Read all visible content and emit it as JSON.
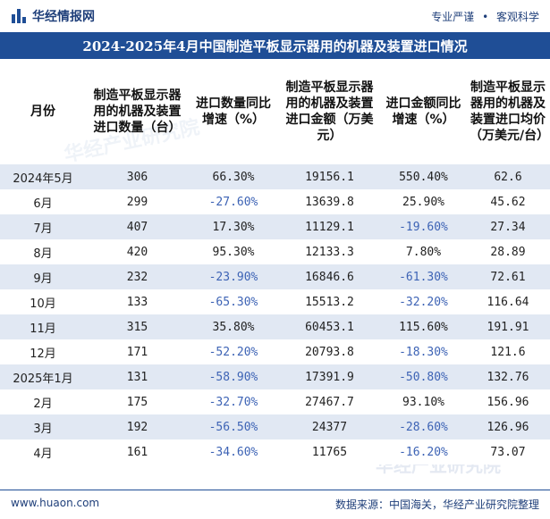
{
  "header": {
    "brand": "华经情报网",
    "tagline": [
      "专业严谨",
      "客观科学"
    ]
  },
  "title": "2024-2025年4月中国制造平板显示器用的机器及装置进口情况",
  "table": {
    "columns": [
      "月份",
      "制造平板显示器用的机器及装置进口数量（台）",
      "进口数量同比增速（%）",
      "制造平板显示器用的机器及装置进口金额（万美元）",
      "进口金额同比增速（%）",
      "制造平板显示器用的机器及装置进口均价（万美元/台）"
    ],
    "rows": [
      [
        "2024年5月",
        "306",
        "66.30%",
        "19156.1",
        "550.40%",
        "62.6"
      ],
      [
        "6月",
        "299",
        "-27.60%",
        "13639.8",
        "25.90%",
        "45.62"
      ],
      [
        "7月",
        "407",
        "17.30%",
        "11129.1",
        "-19.60%",
        "27.34"
      ],
      [
        "8月",
        "420",
        "95.30%",
        "12133.3",
        "7.80%",
        "28.89"
      ],
      [
        "9月",
        "232",
        "-23.90%",
        "16846.6",
        "-61.30%",
        "72.61"
      ],
      [
        "10月",
        "133",
        "-65.30%",
        "15513.2",
        "-32.20%",
        "116.64"
      ],
      [
        "11月",
        "315",
        "35.80%",
        "60453.1",
        "115.60%",
        "191.91"
      ],
      [
        "12月",
        "171",
        "-52.20%",
        "20793.8",
        "-18.30%",
        "121.6"
      ],
      [
        "2025年1月",
        "131",
        "-58.90%",
        "17391.9",
        "-50.80%",
        "132.76"
      ],
      [
        "2月",
        "175",
        "-32.70%",
        "27467.7",
        "93.10%",
        "156.96"
      ],
      [
        "3月",
        "192",
        "-56.50%",
        "24377",
        "-28.60%",
        "126.96"
      ],
      [
        "4月",
        "161",
        "-34.60%",
        "11765",
        "-16.20%",
        "73.07"
      ]
    ]
  },
  "footer": {
    "url": "www.huaon.com",
    "source": "数据来源：中国海关，华经产业研究院整理"
  },
  "watermark": "华经产业研究院",
  "colors": {
    "title_bar": "#1f4e96",
    "stripe": "#e1e8f3",
    "negative_text": "#3d63b5"
  }
}
